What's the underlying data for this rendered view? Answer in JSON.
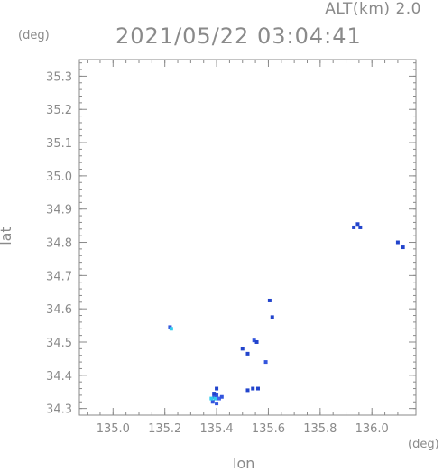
{
  "header": {
    "alt_label": "ALT(km) 2.0",
    "datetime": "2021/05/22 03:04:41"
  },
  "chart_data": {
    "type": "scatter",
    "xlabel": "lon",
    "ylabel": "lat",
    "x_unit": "(deg)",
    "y_unit": "(deg)",
    "xlim": [
      134.87,
      136.17
    ],
    "ylim": [
      34.28,
      35.35
    ],
    "xticks": [
      "135.0",
      "135.2",
      "135.4",
      "135.6",
      "135.8",
      "136.0"
    ],
    "xtick_values": [
      135.0,
      135.2,
      135.4,
      135.6,
      135.8,
      136.0
    ],
    "yticks": [
      "34.3",
      "34.4",
      "34.5",
      "34.6",
      "34.7",
      "34.8",
      "34.9",
      "35.0",
      "35.1",
      "35.2",
      "35.3"
    ],
    "ytick_values": [
      34.3,
      34.4,
      34.5,
      34.6,
      34.7,
      34.8,
      34.9,
      35.0,
      35.1,
      35.2,
      35.3
    ],
    "points": [
      {
        "lon": 135.22,
        "lat": 34.545,
        "color": "#3355dd"
      },
      {
        "lon": 135.225,
        "lat": 34.54,
        "color": "#33ccee"
      },
      {
        "lon": 135.39,
        "lat": 34.335,
        "color": "#3355dd"
      },
      {
        "lon": 135.395,
        "lat": 34.33,
        "color": "#33ccee"
      },
      {
        "lon": 135.4,
        "lat": 34.34,
        "color": "#3355dd"
      },
      {
        "lon": 135.41,
        "lat": 34.33,
        "color": "#4466ee"
      },
      {
        "lon": 135.385,
        "lat": 34.32,
        "color": "#3355dd"
      },
      {
        "lon": 135.42,
        "lat": 34.335,
        "color": "#3355dd"
      },
      {
        "lon": 135.4,
        "lat": 34.315,
        "color": "#3355dd"
      },
      {
        "lon": 135.39,
        "lat": 34.345,
        "color": "#2244cc"
      },
      {
        "lon": 135.4,
        "lat": 34.36,
        "color": "#2244cc"
      },
      {
        "lon": 135.38,
        "lat": 34.33,
        "color": "#33ccee"
      },
      {
        "lon": 135.5,
        "lat": 34.48,
        "color": "#2244cc"
      },
      {
        "lon": 135.52,
        "lat": 34.465,
        "color": "#2244cc"
      },
      {
        "lon": 135.545,
        "lat": 34.505,
        "color": "#3355dd"
      },
      {
        "lon": 135.555,
        "lat": 34.5,
        "color": "#2244cc"
      },
      {
        "lon": 135.59,
        "lat": 34.44,
        "color": "#3355dd"
      },
      {
        "lon": 135.605,
        "lat": 34.625,
        "color": "#2244cc"
      },
      {
        "lon": 135.615,
        "lat": 34.575,
        "color": "#2244cc"
      },
      {
        "lon": 135.52,
        "lat": 34.355,
        "color": "#2244cc"
      },
      {
        "lon": 135.54,
        "lat": 34.36,
        "color": "#2244cc"
      },
      {
        "lon": 135.56,
        "lat": 34.36,
        "color": "#2244cc"
      },
      {
        "lon": 135.93,
        "lat": 34.845,
        "color": "#2244cc"
      },
      {
        "lon": 135.945,
        "lat": 34.855,
        "color": "#2244cc"
      },
      {
        "lon": 135.955,
        "lat": 34.845,
        "color": "#2244cc"
      },
      {
        "lon": 136.1,
        "lat": 34.8,
        "color": "#2244cc"
      },
      {
        "lon": 136.12,
        "lat": 34.785,
        "color": "#2244cc"
      }
    ]
  }
}
